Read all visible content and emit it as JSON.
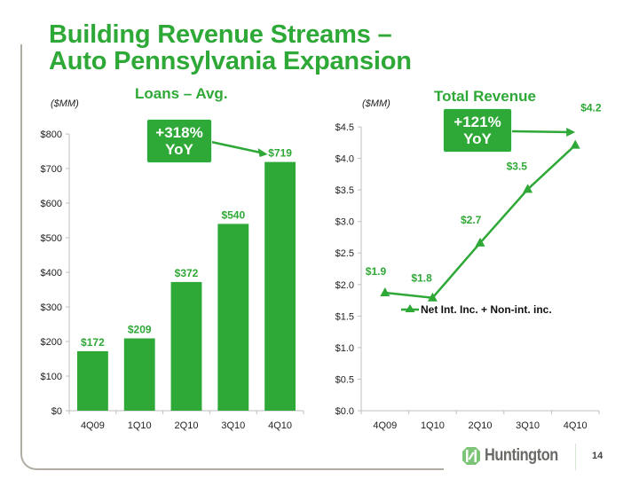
{
  "slide": {
    "title_line1": "Building Revenue Streams –",
    "title_line2": "Auto Pennsylvania Expansion",
    "page_number": "14",
    "brand": "Huntington",
    "colors": {
      "accent": "#2ea836",
      "text": "#222222",
      "axis": "#bfbfbf",
      "frame": "#b0aca4",
      "logo_gray": "#6b6a66",
      "logo_green": "#7cc576"
    }
  },
  "chart_data": [
    {
      "type": "bar",
      "title": "Loans – Avg.",
      "unit_label": "($MM)",
      "categories": [
        "4Q09",
        "1Q10",
        "2Q10",
        "3Q10",
        "4Q10"
      ],
      "values": [
        172,
        209,
        372,
        540,
        719
      ],
      "data_labels": [
        "$172",
        "$209",
        "$372",
        "$540",
        "$719"
      ],
      "ylim": [
        0,
        800
      ],
      "yticks": [
        0,
        100,
        200,
        300,
        400,
        500,
        600,
        700,
        800
      ],
      "ytick_labels": [
        "$0",
        "$100",
        "$200",
        "$300",
        "$400",
        "$500",
        "$600",
        "$700",
        "$800"
      ],
      "xlabel": "",
      "ylabel": "",
      "grid": false,
      "annotation": {
        "line1": "+318%",
        "line2": "YoY",
        "points_to": "4Q10"
      }
    },
    {
      "type": "line",
      "title": "Total Revenue",
      "unit_label": "($MM)",
      "categories": [
        "4Q09",
        "1Q10",
        "2Q10",
        "3Q10",
        "4Q10"
      ],
      "series": [
        {
          "name": "Net Int. Inc. + Non-int. inc.",
          "values": [
            1.87,
            1.79,
            2.66,
            3.51,
            4.21
          ],
          "data_labels": [
            "$1.9",
            "$1.8",
            "$2.7",
            "$3.5",
            "$4.2"
          ],
          "marker": "triangle"
        }
      ],
      "ylim": [
        0,
        4.5
      ],
      "yticks": [
        0,
        0.5,
        1.0,
        1.5,
        2.0,
        2.5,
        3.0,
        3.5,
        4.0,
        4.5
      ],
      "ytick_labels": [
        "$0.0",
        "$0.5",
        "$1.0",
        "$1.5",
        "$2.0",
        "$2.5",
        "$3.0",
        "$3.5",
        "$4.0",
        "$4.5"
      ],
      "xlabel": "",
      "ylabel": "",
      "grid": false,
      "legend": "center-left",
      "annotation": {
        "line1": "+121%",
        "line2": "YoY",
        "points_to": "4Q10"
      }
    }
  ]
}
